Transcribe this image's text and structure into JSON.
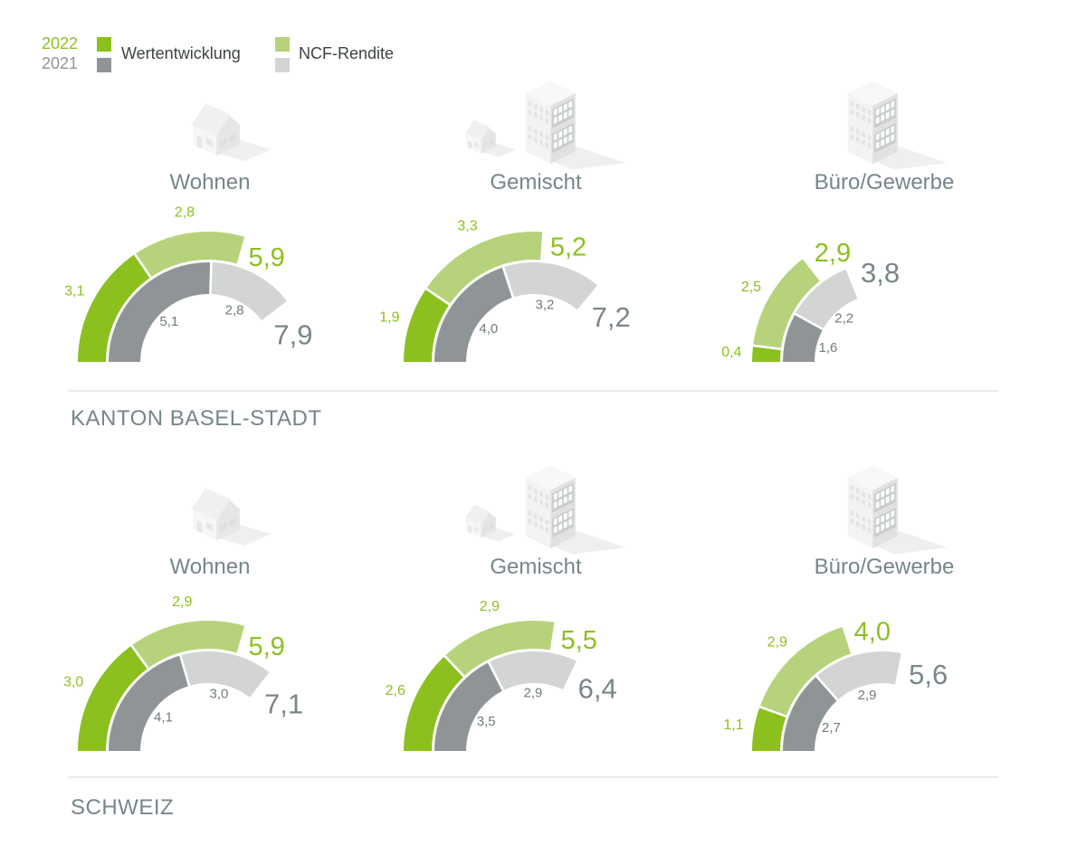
{
  "legend": {
    "year_2022": "2022",
    "year_2021": "2021",
    "wertentwicklung_label": "Wertentwicklung",
    "ncf_label": "NCF-Rendite"
  },
  "colors": {
    "green_2022": "#8bc01e",
    "light_green_2022": "#b6d37c",
    "gray_2021": "#8f9596",
    "light_gray_2021": "#d3d4d4",
    "heading_text": "#76868b",
    "legend_text": "#3d4344",
    "total_gray_text": "#7a868a",
    "inner_label_text": "#6f7b7f",
    "separator": "#eaeaea"
  },
  "chart_data": {
    "type": "gauge",
    "subtype": "stacked-semicircle-gauge",
    "semicircle_degrees": 180,
    "gauge_max": 10,
    "decimal_format": "comma",
    "legend_series": [
      {
        "year": "2022",
        "segments": [
          "Wertentwicklung",
          "NCF-Rendite"
        ],
        "colors": [
          "#8bc01e",
          "#b6d37c"
        ]
      },
      {
        "year": "2021",
        "segments": [
          "Wertentwicklung",
          "NCF-Rendite"
        ],
        "colors": [
          "#8f9596",
          "#d3d4d4"
        ]
      }
    ],
    "sections": [
      {
        "label": "KANTON BASEL-STADT",
        "gauges": [
          {
            "title": "Wohnen",
            "icon": "house-icon",
            "y2022": {
              "wert": 3.1,
              "ncf": 2.8,
              "total": 5.9
            },
            "y2022_labels": {
              "wert": "3,1",
              "ncf": "2,8",
              "total": "5,9"
            },
            "y2021": {
              "wert": 5.1,
              "ncf": 2.8,
              "total": 7.9
            },
            "y2021_labels": {
              "wert": "5,1",
              "ncf": "2,8",
              "total": "7,9"
            }
          },
          {
            "title": "Gemischt",
            "icon": "house-and-building-icon",
            "y2022": {
              "wert": 1.9,
              "ncf": 3.3,
              "total": 5.2
            },
            "y2022_labels": {
              "wert": "1,9",
              "ncf": "3,3",
              "total": "5,2"
            },
            "y2021": {
              "wert": 4.0,
              "ncf": 3.2,
              "total": 7.2
            },
            "y2021_labels": {
              "wert": "4,0",
              "ncf": "3,2",
              "total": "7,2"
            }
          },
          {
            "title": "Büro/Gewerbe",
            "icon": "building-icon",
            "y2022": {
              "wert": 0.4,
              "ncf": 2.5,
              "total": 2.9
            },
            "y2022_labels": {
              "wert": "0,4",
              "ncf": "2,5",
              "total": "2,9"
            },
            "y2021": {
              "wert": 1.6,
              "ncf": 2.2,
              "total": 3.8
            },
            "y2021_labels": {
              "wert": "1,6",
              "ncf": "2,2",
              "total": "3,8"
            }
          }
        ]
      },
      {
        "label": "SCHWEIZ",
        "gauges": [
          {
            "title": "Wohnen",
            "icon": "house-icon",
            "y2022": {
              "wert": 3.0,
              "ncf": 2.9,
              "total": 5.9
            },
            "y2022_labels": {
              "wert": "3,0",
              "ncf": "2,9",
              "total": "5,9"
            },
            "y2021": {
              "wert": 4.1,
              "ncf": 3.0,
              "total": 7.1
            },
            "y2021_labels": {
              "wert": "4,1",
              "ncf": "3,0",
              "total": "7,1"
            }
          },
          {
            "title": "Gemischt",
            "icon": "house-and-building-icon",
            "y2022": {
              "wert": 2.6,
              "ncf": 2.9,
              "total": 5.5
            },
            "y2022_labels": {
              "wert": "2,6",
              "ncf": "2,9",
              "total": "5,5"
            },
            "y2021": {
              "wert": 3.5,
              "ncf": 2.9,
              "total": 6.4
            },
            "y2021_labels": {
              "wert": "3,5",
              "ncf": "2,9",
              "total": "6,4"
            }
          },
          {
            "title": "Büro/Gewerbe",
            "icon": "building-icon",
            "y2022": {
              "wert": 1.1,
              "ncf": 2.9,
              "total": 4.0
            },
            "y2022_labels": {
              "wert": "1,1",
              "ncf": "2,9",
              "total": "4,0"
            },
            "y2021": {
              "wert": 2.7,
              "ncf": 2.9,
              "total": 5.6
            },
            "y2021_labels": {
              "wert": "2,7",
              "ncf": "2,9",
              "total": "5,6"
            }
          }
        ]
      }
    ]
  }
}
